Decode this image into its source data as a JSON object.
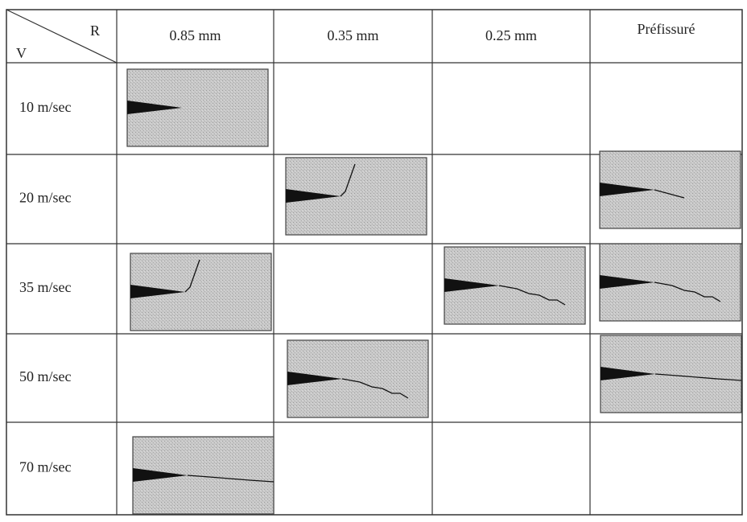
{
  "table": {
    "corner": {
      "row_label": "V",
      "column_label": "R"
    },
    "columns": [
      "0.85 mm",
      "0.35 mm",
      "0.25 mm",
      "Préfissuré"
    ],
    "rows": [
      "10 m/sec",
      "20 m/sec",
      "35 m/sec",
      "50 m/sec",
      "70 m/sec"
    ]
  }
}
